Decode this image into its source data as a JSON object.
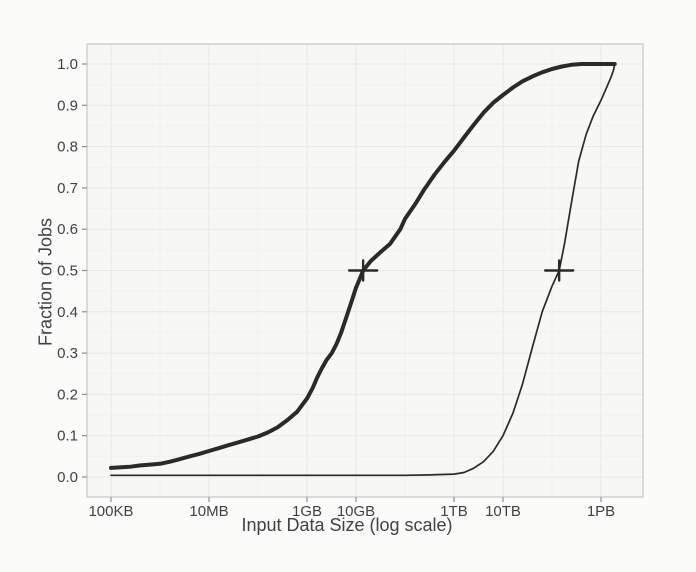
{
  "chart_data": {
    "type": "line",
    "title": "",
    "xlabel": "Input Data Size (log scale)",
    "ylabel": "Fraction of Jobs",
    "x_scale": "log",
    "x_unit": "bytes",
    "x_ticks": [
      {
        "label": "100KB",
        "bytes": 100000.0
      },
      {
        "label": "10MB",
        "bytes": 10000000.0
      },
      {
        "label": "1GB",
        "bytes": 1000000000.0
      },
      {
        "label": "10GB",
        "bytes": 10000000000.0
      },
      {
        "label": "1TB",
        "bytes": 1000000000000.0
      },
      {
        "label": "10TB",
        "bytes": 10000000000000.0
      },
      {
        "label": "1PB",
        "bytes": 1000000000000000.0
      }
    ],
    "y_ticks": [
      "0.0",
      "0.1",
      "0.2",
      "0.3",
      "0.4",
      "0.5",
      "0.6",
      "0.7",
      "0.8",
      "0.9",
      "1.0"
    ],
    "ylim": [
      -0.046,
      1.053
    ],
    "x_domain_log10_bytes": [
      4.51,
      15.86
    ],
    "grid": "faint major and minor gridlines",
    "legend": "none",
    "series": [
      {
        "name": "thick_cdf",
        "stroke_width": 4,
        "points": [
          [
            100000.0,
            0.022
          ],
          [
            250000.0,
            0.025
          ],
          [
            400000.0,
            0.028
          ],
          [
            630000.0,
            0.03
          ],
          [
            1000000.0,
            0.032
          ],
          [
            1600000.0,
            0.037
          ],
          [
            2500000.0,
            0.043
          ],
          [
            4000000.0,
            0.05
          ],
          [
            6300000.0,
            0.056
          ],
          [
            10000000.0,
            0.063
          ],
          [
            16000000.0,
            0.07
          ],
          [
            25000000.0,
            0.077
          ],
          [
            40000000.0,
            0.084
          ],
          [
            63000000.0,
            0.091
          ],
          [
            100000000.0,
            0.098
          ],
          [
            160000000.0,
            0.108
          ],
          [
            250000000.0,
            0.12
          ],
          [
            400000000.0,
            0.138
          ],
          [
            630000000.0,
            0.158
          ],
          [
            1000000000.0,
            0.19
          ],
          [
            1300000000.0,
            0.215
          ],
          [
            1600000000.0,
            0.24
          ],
          [
            2000000000.0,
            0.263
          ],
          [
            2500000000.0,
            0.283
          ],
          [
            3200000000.0,
            0.3
          ],
          [
            4000000000.0,
            0.322
          ],
          [
            5000000000.0,
            0.35
          ],
          [
            6300000000.0,
            0.386
          ],
          [
            8000000000.0,
            0.423
          ],
          [
            10000000000.0,
            0.458
          ],
          [
            14000000000.0,
            0.5
          ],
          [
            20000000000.0,
            0.523
          ],
          [
            32000000000.0,
            0.545
          ],
          [
            50000000000.0,
            0.565
          ],
          [
            80000000000.0,
            0.6
          ],
          [
            100000000000.0,
            0.625
          ],
          [
            160000000000.0,
            0.66
          ],
          [
            250000000000.0,
            0.697
          ],
          [
            400000000000.0,
            0.732
          ],
          [
            630000000000.0,
            0.762
          ],
          [
            1000000000000.0,
            0.79
          ],
          [
            1600000000000.0,
            0.822
          ],
          [
            2500000000000.0,
            0.852
          ],
          [
            4000000000000.0,
            0.882
          ],
          [
            6300000000000.0,
            0.906
          ],
          [
            10000000000000.0,
            0.925
          ],
          [
            16000000000000.0,
            0.943
          ],
          [
            25000000000000.0,
            0.958
          ],
          [
            40000000000000.0,
            0.97
          ],
          [
            63000000000000.0,
            0.98
          ],
          [
            100000000000000.0,
            0.988
          ],
          [
            160000000000000.0,
            0.994
          ],
          [
            250000000000000.0,
            0.998
          ],
          [
            400000000000000.0,
            1.0
          ],
          [
            1000000000000000.0,
            1.0
          ],
          [
            1900000000000000.0,
            1.0
          ]
        ]
      },
      {
        "name": "thin_cdf",
        "stroke_width": 1.7,
        "points": [
          [
            100000.0,
            0.004
          ],
          [
            1000000000.0,
            0.004
          ],
          [
            100000000000.0,
            0.004
          ],
          [
            320000000000.0,
            0.005
          ],
          [
            1000000000000.0,
            0.007
          ],
          [
            1600000000000.0,
            0.011
          ],
          [
            2500000000000.0,
            0.021
          ],
          [
            4000000000000.0,
            0.037
          ],
          [
            6300000000000.0,
            0.062
          ],
          [
            10000000000000.0,
            0.1
          ],
          [
            16000000000000.0,
            0.155
          ],
          [
            25000000000000.0,
            0.225
          ],
          [
            40000000000000.0,
            0.315
          ],
          [
            63000000000000.0,
            0.4
          ],
          [
            100000000000000.0,
            0.462
          ],
          [
            140000000000000.0,
            0.5
          ],
          [
            180000000000000.0,
            0.565
          ],
          [
            250000000000000.0,
            0.665
          ],
          [
            350000000000000.0,
            0.765
          ],
          [
            500000000000000.0,
            0.83
          ],
          [
            700000000000000.0,
            0.875
          ],
          [
            1000000000000000.0,
            0.912
          ],
          [
            1300000000000000.0,
            0.943
          ],
          [
            1600000000000000.0,
            0.968
          ],
          [
            1800000000000000.0,
            0.985
          ],
          [
            1900000000000000.0,
            1.0
          ]
        ]
      }
    ],
    "median_markers": [
      {
        "bytes": 14000000000.0,
        "fraction": 0.5,
        "shape": "plus"
      },
      {
        "bytes": 140000000000000.0,
        "fraction": 0.5,
        "shape": "plus"
      }
    ],
    "colors": {
      "line": "#2b2a29",
      "text": "#414146",
      "tick_mark": "#8f8f8c",
      "panel_border": "#c7c7c3",
      "grid_major": "#e7e7e3",
      "grid_minor": "#f1f1ee",
      "background": "#fbfbf9",
      "panel_background": "#f7f7f4"
    }
  }
}
